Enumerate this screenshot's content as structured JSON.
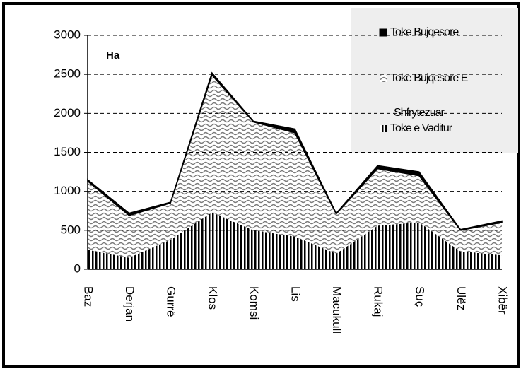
{
  "chart_data": {
    "type": "stacked_area",
    "annotation": "Ha",
    "legend_extra": "Shfrytezuar",
    "categories": [
      "Baz",
      "Derjan",
      "Gurrë",
      "Klos",
      "Komsi",
      "Lis",
      "Macukull",
      "Rukaj",
      "Suç",
      "Ulëz",
      "Xibër"
    ],
    "series": [
      {
        "name": "Toke e Vaditur",
        "color": "#000000",
        "pattern": "stripes",
        "values": [
          250,
          150,
          380,
          730,
          500,
          420,
          200,
          560,
          600,
          230,
          180
        ]
      },
      {
        "name": "Toke Bujqesore E",
        "color": "#7a7a7a",
        "pattern": "waves",
        "values": [
          880,
          540,
          470,
          1760,
          1390,
          1330,
          510,
          730,
          600,
          270,
          420
        ]
      },
      {
        "name": "Toke Bujqesore",
        "color": "#000000",
        "pattern": "solid",
        "values": [
          20,
          30,
          10,
          30,
          10,
          50,
          10,
          40,
          50,
          10,
          20
        ]
      }
    ],
    "ylim": [
      0,
      3000
    ],
    "yticks": [
      0,
      500,
      1000,
      1500,
      2000,
      2500,
      3000
    ],
    "grid": true
  }
}
